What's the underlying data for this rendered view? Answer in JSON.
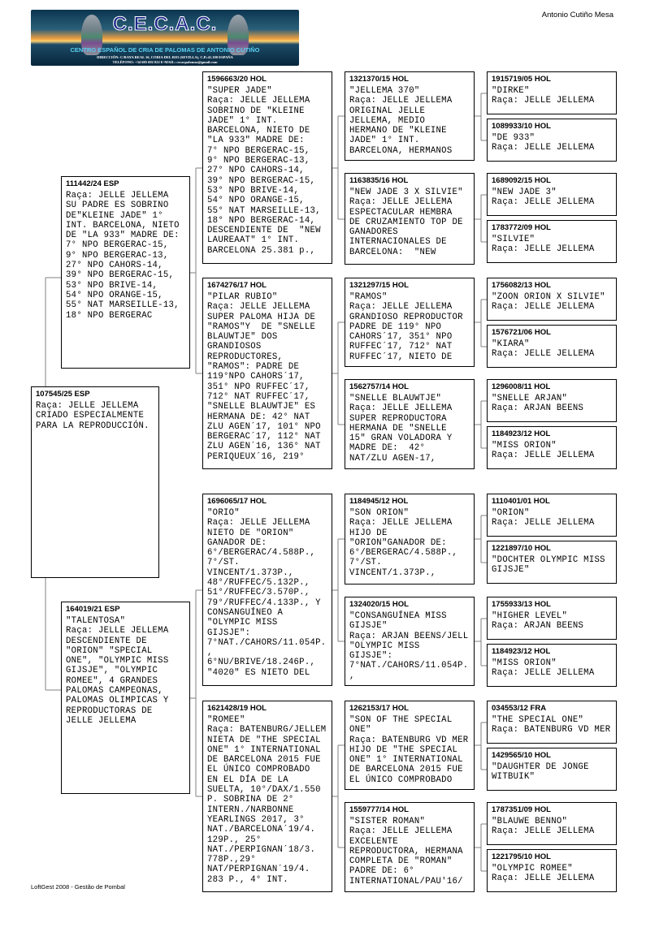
{
  "header": {
    "logo": {
      "title": "C.E.C.A.C.",
      "subtitle": "CENTRO ESPAÑOL DE CRIA DE PALOMAS DE ANTONIO CUTIÑO",
      "address": "DIRECCIÓN: C/RAYA REAL 16, CORIA DEL RIO (SEVILLA), C.P.:41.100 ESPAÑA",
      "contact": "TELÉFONO: +34 685 692 022     E-MAIL: cecacpalomas@gmail.com"
    },
    "owner": "Antonio Cutiño Mesa"
  },
  "footer": "LoftGest 2008 - Gestão de Pombal",
  "line_color": "#808080",
  "pedigree": {
    "subject": {
      "ring": "107545/25 ESP",
      "lines": [
        "Raça: JELLE JELLEMA",
        "CRIADO ESPECIALMENTE",
        "PARA LA REPRODUCCIÓN."
      ]
    },
    "parents": [
      {
        "ring": "111442/24 ESP",
        "lines": [
          "Raça: JELLE JELLEMA",
          "SU PADRE ES SOBRINO",
          "DE\"KLEINE JADE\" 1°",
          "INT. BARCELONA, NIETO",
          "DE \"LA 933\" MADRE DE:",
          "7° NPO BERGERAC-15,",
          "9° NPO BERGERAC-13,",
          "27° NPO CAHORS-14,",
          "39° NPO BERGERAC-15,",
          "53° NPO BRIVE-14,",
          "54° NPO ORANGE-15,",
          "55° NAT MARSEILLE-13,",
          "18° NPO BERGERAC"
        ]
      },
      {
        "ring": "164019/21 ESP",
        "lines": [
          "\"TALENTOSA\"",
          "Raça: JELLE JELLEMA",
          "DESCENDIENTE DE",
          "\"ORION\" \"SPECIAL",
          "ONE\", \"OLYMPIC MISS",
          "GIJSJE\", \"OLYMPIC",
          "ROMEE\", 4 GRANDES",
          "PALOMAS CAMPEONAS,",
          "PALOMAS OLIMPICAS Y",
          "REPRODUCTORAS DE",
          "JELLE JELLEMA"
        ]
      }
    ],
    "grandparents": [
      {
        "ring": "1596663/20 HOL",
        "lines": [
          "\"SUPER JADE\"",
          "Raça: JELLE JELLEMA",
          "SOBRINO DE \"KLEINE",
          "JADE\" 1° INT.",
          "BARCELONA, NIETO DE",
          "\"LA 933\" MADRE DE:",
          "7° NPO BERGERAC-15,",
          "9° NPO BERGERAC-13,",
          "27° NPO CAHORS-14,",
          "39° NPO BERGERAC-15,",
          "53° NPO BRIVE-14,",
          "54° NPO ORANGE-15,",
          "55° NAT MARSEILLE-13,",
          "18° NPO BERGERAC-14,",
          "DESCENDIENTE DE  \"NEW",
          "LAUREAAT\" 1° INT.",
          "BARCELONA 25.381 p.,"
        ]
      },
      {
        "ring": "1674276/17 HOL",
        "lines": [
          "\"PILAR RUBIO\"",
          "Raça: JELLE JELLEMA",
          "SUPER PALOMA HIJA DE",
          "\"RAMOS\"Y  DE \"SNELLE",
          "BLAUWTJE\" DOS",
          "GRANDIOSOS",
          "REPRODUCTORES,",
          "\"RAMOS\": PADRE DE",
          "119°NPO CAHORS´17,",
          "351° NPO RUFFEC´17,",
          "712° NAT RUFFEC´17,",
          "\"SNELLE BLAUWTJE\" ES",
          "HERMANA DE: 42° NAT",
          "ZLU AGEN´17, 101° NPO",
          "BERGERAC´17, 112° NAT",
          "ZLU AGEN´16, 136° NAT",
          "PERIQUEUX´16, 219°"
        ]
      },
      {
        "ring": "1696065/17 HOL",
        "lines": [
          "\"ORIO\"",
          "Raça: JELLE JELLEMA",
          "NIETO DE \"ORION\"",
          "GANADOR DE:",
          "6°/BERGERAC/4.588P.,",
          "7°/ST.",
          "VINCENT/1.373P.,",
          "48°/RUFFEC/5.132P.,",
          "51°/RUFFEC/3.570P.,",
          "79°/RUFFEC/4.133P., Y",
          "CONSANGUÍNEO A",
          "\"OLYMPIC MISS",
          "GIJSJE\":",
          "7°NAT./CAHORS/11.054P.",
          ",",
          "6°NU/BRIVE/18.246P.,",
          "\"4020\" ES NIETO DEL"
        ]
      },
      {
        "ring": "1621428/19 HOL",
        "lines": [
          "\"ROMEE\"",
          "Raça: BATENBURG/JELLEM",
          "NIETA DE \"THE SPECIAL",
          "ONE\" 1° INTERNATIONAL",
          "DE BARCELONA 2015 FUE",
          "EL ÚNICO COMPROBADO",
          "EN EL DÍA DE LA",
          "SUELTA, 10°/DAX/1.550",
          "P. SOBRINA DE 2°",
          "INTERN./NARBONNE",
          "YEARLINGS 2017, 3°",
          "NAT./BARCELONA´19/4.",
          "129P., 25°",
          "NAT./PERPIGNAN´18/3.",
          "778P.,29°",
          "NAT/PERPIGNAN´19/4.",
          "283 P., 4° INT."
        ]
      }
    ],
    "great_grandparents": [
      {
        "ring": "1321370/15 HOL",
        "lines": [
          "\"JELLEMA 370\"",
          "Raça: JELLE JELLEMA",
          "ORIGINAL JELLE",
          "JELLEMA, MEDIO",
          "HERMANO DE \"KLEINE",
          "JADE\" 1° INT.",
          "BARCELONA, HERMANOS"
        ]
      },
      {
        "ring": "1163835/16 HOL",
        "lines": [
          "\"NEW JADE 3 X SILVIE\"",
          "Raça: JELLE JELLEMA",
          "ESPECTACULAR HEMBRA",
          "DE CRUZAMIENTO TOP DE",
          "GANADORES",
          "INTERNACIONALES DE",
          "BARCELONA:  \"NEW"
        ]
      },
      {
        "ring": "1321297/15 HOL",
        "lines": [
          "\"RAMOS\"",
          "Raça: JELLE JELLEMA",
          "GRANDIOSO REPRODUCTOR",
          "PADRE DE 119° NPO",
          "CAHORS´17, 351° NPO",
          "RUFFEC´17, 712° NAT",
          "RUFFEC´17, NIETO DE"
        ]
      },
      {
        "ring": "1562757/14 HOL",
        "lines": [
          "\"SNELLE BLAUWTJE\"",
          "Raça: JELLE JELLEMA",
          "SUPER REPRODUCTORA",
          "HERMANA DE \"SNELLE",
          "15\" GRAN VOLADORA Y",
          "MADRE DE:  42°",
          "NAT/ZLU AGEN-17,"
        ]
      },
      {
        "ring": "1184945/12 HOL",
        "lines": [
          "\"SON ORION\"",
          "Raça: JELLE JELLEMA",
          "HIJO DE",
          "\"ORION\"GANADOR DE:",
          "6°/BERGERAC/4.588P.,",
          "7°/ST.",
          "VINCENT/1.373P.,"
        ]
      },
      {
        "ring": "1324020/15 HOL",
        "lines": [
          "\"CONSANGUÍNEA MISS",
          "GIJSJE\"",
          "Raça: ARJAN BEENS/JELL",
          "\"OLYMPIC MISS",
          "GIJSJE\":",
          "7°NAT./CAHORS/11.054P.",
          ","
        ]
      },
      {
        "ring": "1262153/17 HOL",
        "lines": [
          "\"SON OF THE SPECIAL",
          "ONE\"",
          "Raça: BATENBURG VD MER",
          "HIJO DE \"THE SPECIAL",
          "ONE\" 1° INTERNATIONAL",
          "DE BARCELONA 2015 FUE",
          "EL ÚNICO COMPROBADO"
        ]
      },
      {
        "ring": "1559777/14 HOL",
        "lines": [
          "\"SISTER ROMAN\"",
          "Raça: JELLE JELLEMA",
          "EXCELENTE",
          "REPRODUCTORA, HERMANA",
          "COMPLETA DE \"ROMAN\"",
          "PADRE DE: 6°",
          "INTERNATIONAL/PAU'16/"
        ]
      }
    ],
    "great_great_grandparents": [
      {
        "ring": "1915719/05 HOL",
        "lines": [
          "\"DIRKE\"",
          "Raça: JELLE JELLEMA"
        ]
      },
      {
        "ring": "1089933/10 HOL",
        "lines": [
          "\"DE 933\"",
          "Raça: JELLE JELLEMA"
        ]
      },
      {
        "ring": "1689092/15 HOL",
        "lines": [
          "\"NEW JADE 3\"",
          "Raça: JELLE JELLEMA"
        ]
      },
      {
        "ring": "1783772/09 HOL",
        "lines": [
          "\"SILVIE\"",
          "Raça: JELLE JELLEMA"
        ]
      },
      {
        "ring": "1756082/13 HOL",
        "lines": [
          "\"ZOON ORION X SILVIE\"",
          "Raça: JELLE JELLEMA"
        ]
      },
      {
        "ring": "1576721/06 HOL",
        "lines": [
          "\"KIARA\"",
          "Raça: JELLE JELLEMA"
        ]
      },
      {
        "ring": "1296008/11 HOL",
        "lines": [
          "\"SNELLE ARJAN\"",
          "Raça: ARJAN BEENS"
        ]
      },
      {
        "ring": "1184923/12 HOL",
        "lines": [
          "\"MISS ORION\"",
          "Raça: JELLE JELLEMA"
        ]
      },
      {
        "ring": "1110401/01 HOL",
        "lines": [
          "\"ORION\"",
          "Raça: JELLE JELLEMA"
        ]
      },
      {
        "ring": "1221897/10 HOL",
        "lines": [
          "\"DOCHTER OLYMPIC MISS",
          "GIJSJE\""
        ]
      },
      {
        "ring": "1755933/13 HOL",
        "lines": [
          "\"HIGHER LEVEL\"",
          "Raça: ARJAN BEENS"
        ]
      },
      {
        "ring": "1184923/12 HOL",
        "lines": [
          "\"MISS ORION\"",
          "Raça: JELLE JELLEMA"
        ]
      },
      {
        "ring": "034553/12 FRA",
        "lines": [
          "\"THE SPECIAL ONE\"",
          "Raça: BATENBURG VD MER"
        ]
      },
      {
        "ring": "1429565/10 HOL",
        "lines": [
          "\"DAUGHTER DE JONGE",
          "WITBUIK\""
        ]
      },
      {
        "ring": "1787351/09 HOL",
        "lines": [
          "\"BLAUWE BENNO\"",
          "Raça: JELLE JELLEMA"
        ]
      },
      {
        "ring": "1221795/10 HOL",
        "lines": [
          "\"OLYMPIC ROMEE\"",
          "Raça: JELLE JELLEMA"
        ]
      }
    ]
  }
}
